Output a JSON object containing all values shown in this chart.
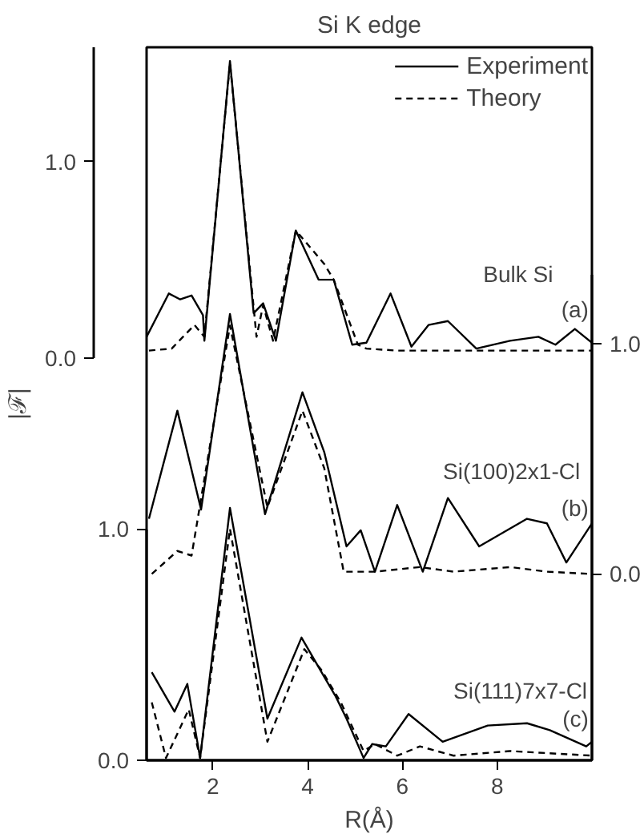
{
  "chart_data": {
    "type": "line",
    "title": "Si K edge",
    "xlabel": "R(Å)",
    "ylabel": "|ℱ|",
    "xlim": [
      0.6,
      10.0
    ],
    "xticks": [
      2,
      4,
      6,
      8
    ],
    "ylim": [
      0,
      3.08
    ],
    "yticks": [
      {
        "value": 0,
        "label": "0.0"
      },
      {
        "value": 1,
        "label": "1.0"
      }
    ],
    "y2lim": [
      -0.81,
      2.29
    ],
    "y2ticks": [
      {
        "value": 0,
        "label": "0.0"
      },
      {
        "value": 1,
        "label": "1.0"
      }
    ],
    "y3lim": [
      -2.04,
      1.58
    ],
    "y3ticks": [
      {
        "value": 0,
        "label": "0.0"
      },
      {
        "value": 1,
        "label": "1.0"
      }
    ],
    "legend": "top right",
    "annotations": [
      "Bulk Si",
      "(a)",
      "Si(100)2x1-Cl",
      "(b)",
      "Si(111)7x7-Cl",
      "(c)"
    ],
    "series": [
      {
        "name": "Experiment",
        "color": "#000000",
        "line_style": "solid",
        "axis": "y3",
        "x": [
          0.6,
          1.07,
          1.31,
          1.55,
          1.79,
          1.82,
          2.36,
          2.86,
          3.06,
          3.33,
          3.75,
          4.23,
          4.55,
          4.94,
          5.24,
          5.75,
          6.19,
          6.55,
          6.96,
          7.56,
          8.27,
          8.87,
          9.23,
          9.64,
          10.0
        ],
        "values": [
          0.11,
          0.33,
          0.3,
          0.32,
          0.22,
          0.09,
          1.51,
          0.23,
          0.28,
          0.09,
          0.65,
          0.4,
          0.4,
          0.07,
          0.08,
          0.33,
          0.06,
          0.17,
          0.19,
          0.05,
          0.09,
          0.11,
          0.07,
          0.15,
          0.08
        ]
      },
      {
        "name": "Theory",
        "color": "#000000",
        "line_style": "dashed",
        "axis": "y3",
        "x": [
          0.65,
          1.13,
          1.61,
          1.82,
          2.36,
          2.92,
          3.06,
          3.27,
          3.75,
          4.35,
          4.55,
          5.06,
          5.24,
          5.89,
          7.0,
          8.5,
          10.0
        ],
        "values": [
          0.04,
          0.05,
          0.17,
          0.11,
          1.5,
          0.11,
          0.27,
          0.09,
          0.65,
          0.48,
          0.4,
          0.07,
          0.05,
          0.04,
          0.04,
          0.04,
          0.04
        ]
      },
      {
        "color": "#000000",
        "line_style": "solid",
        "axis": "y2",
        "x": [
          0.65,
          1.25,
          1.75,
          2.36,
          3.1,
          3.89,
          4.35,
          4.82,
          5.12,
          5.42,
          5.89,
          6.43,
          6.96,
          7.62,
          8.63,
          9.05,
          9.46,
          10.0
        ],
        "values": [
          0.24,
          0.71,
          0.28,
          1.13,
          0.26,
          0.79,
          0.53,
          0.12,
          0.19,
          0.01,
          0.3,
          0.01,
          0.33,
          0.12,
          0.24,
          0.22,
          0.05,
          0.22
        ]
      },
      {
        "color": "#000000",
        "line_style": "dashed",
        "axis": "y2",
        "x": [
          0.71,
          1.25,
          1.55,
          2.36,
          3.15,
          3.89,
          4.35,
          4.76,
          5.42,
          6.37,
          7.08,
          8.27,
          9.05,
          10.0
        ],
        "values": [
          0.0,
          0.1,
          0.08,
          1.08,
          0.29,
          0.71,
          0.46,
          0.01,
          0.01,
          0.03,
          0.01,
          0.03,
          0.01,
          0.0
        ]
      },
      {
        "color": "#000000",
        "line_style": "solid",
        "axis": "y",
        "x": [
          0.71,
          1.19,
          1.46,
          1.73,
          2.36,
          3.15,
          3.87,
          4.35,
          4.58,
          4.82,
          5.18,
          5.36,
          5.65,
          6.13,
          6.85,
          7.8,
          8.63,
          9.11,
          9.88,
          10.0
        ],
        "values": [
          0.38,
          0.21,
          0.33,
          0.01,
          1.09,
          0.18,
          0.53,
          0.36,
          0.28,
          0.18,
          0.01,
          0.07,
          0.06,
          0.2,
          0.08,
          0.15,
          0.16,
          0.13,
          0.06,
          0.08
        ]
      },
      {
        "color": "#000000",
        "line_style": "dashed",
        "axis": "y",
        "x": [
          0.71,
          1.01,
          1.49,
          1.73,
          2.36,
          3.15,
          3.93,
          4.29,
          4.7,
          5.18,
          5.42,
          5.89,
          6.37,
          7.08,
          8.27,
          10.0
        ],
        "values": [
          0.25,
          0.01,
          0.22,
          0.01,
          1.0,
          0.08,
          0.48,
          0.39,
          0.25,
          0.04,
          0.07,
          0.02,
          0.06,
          0.02,
          0.04,
          0.02
        ]
      }
    ]
  }
}
